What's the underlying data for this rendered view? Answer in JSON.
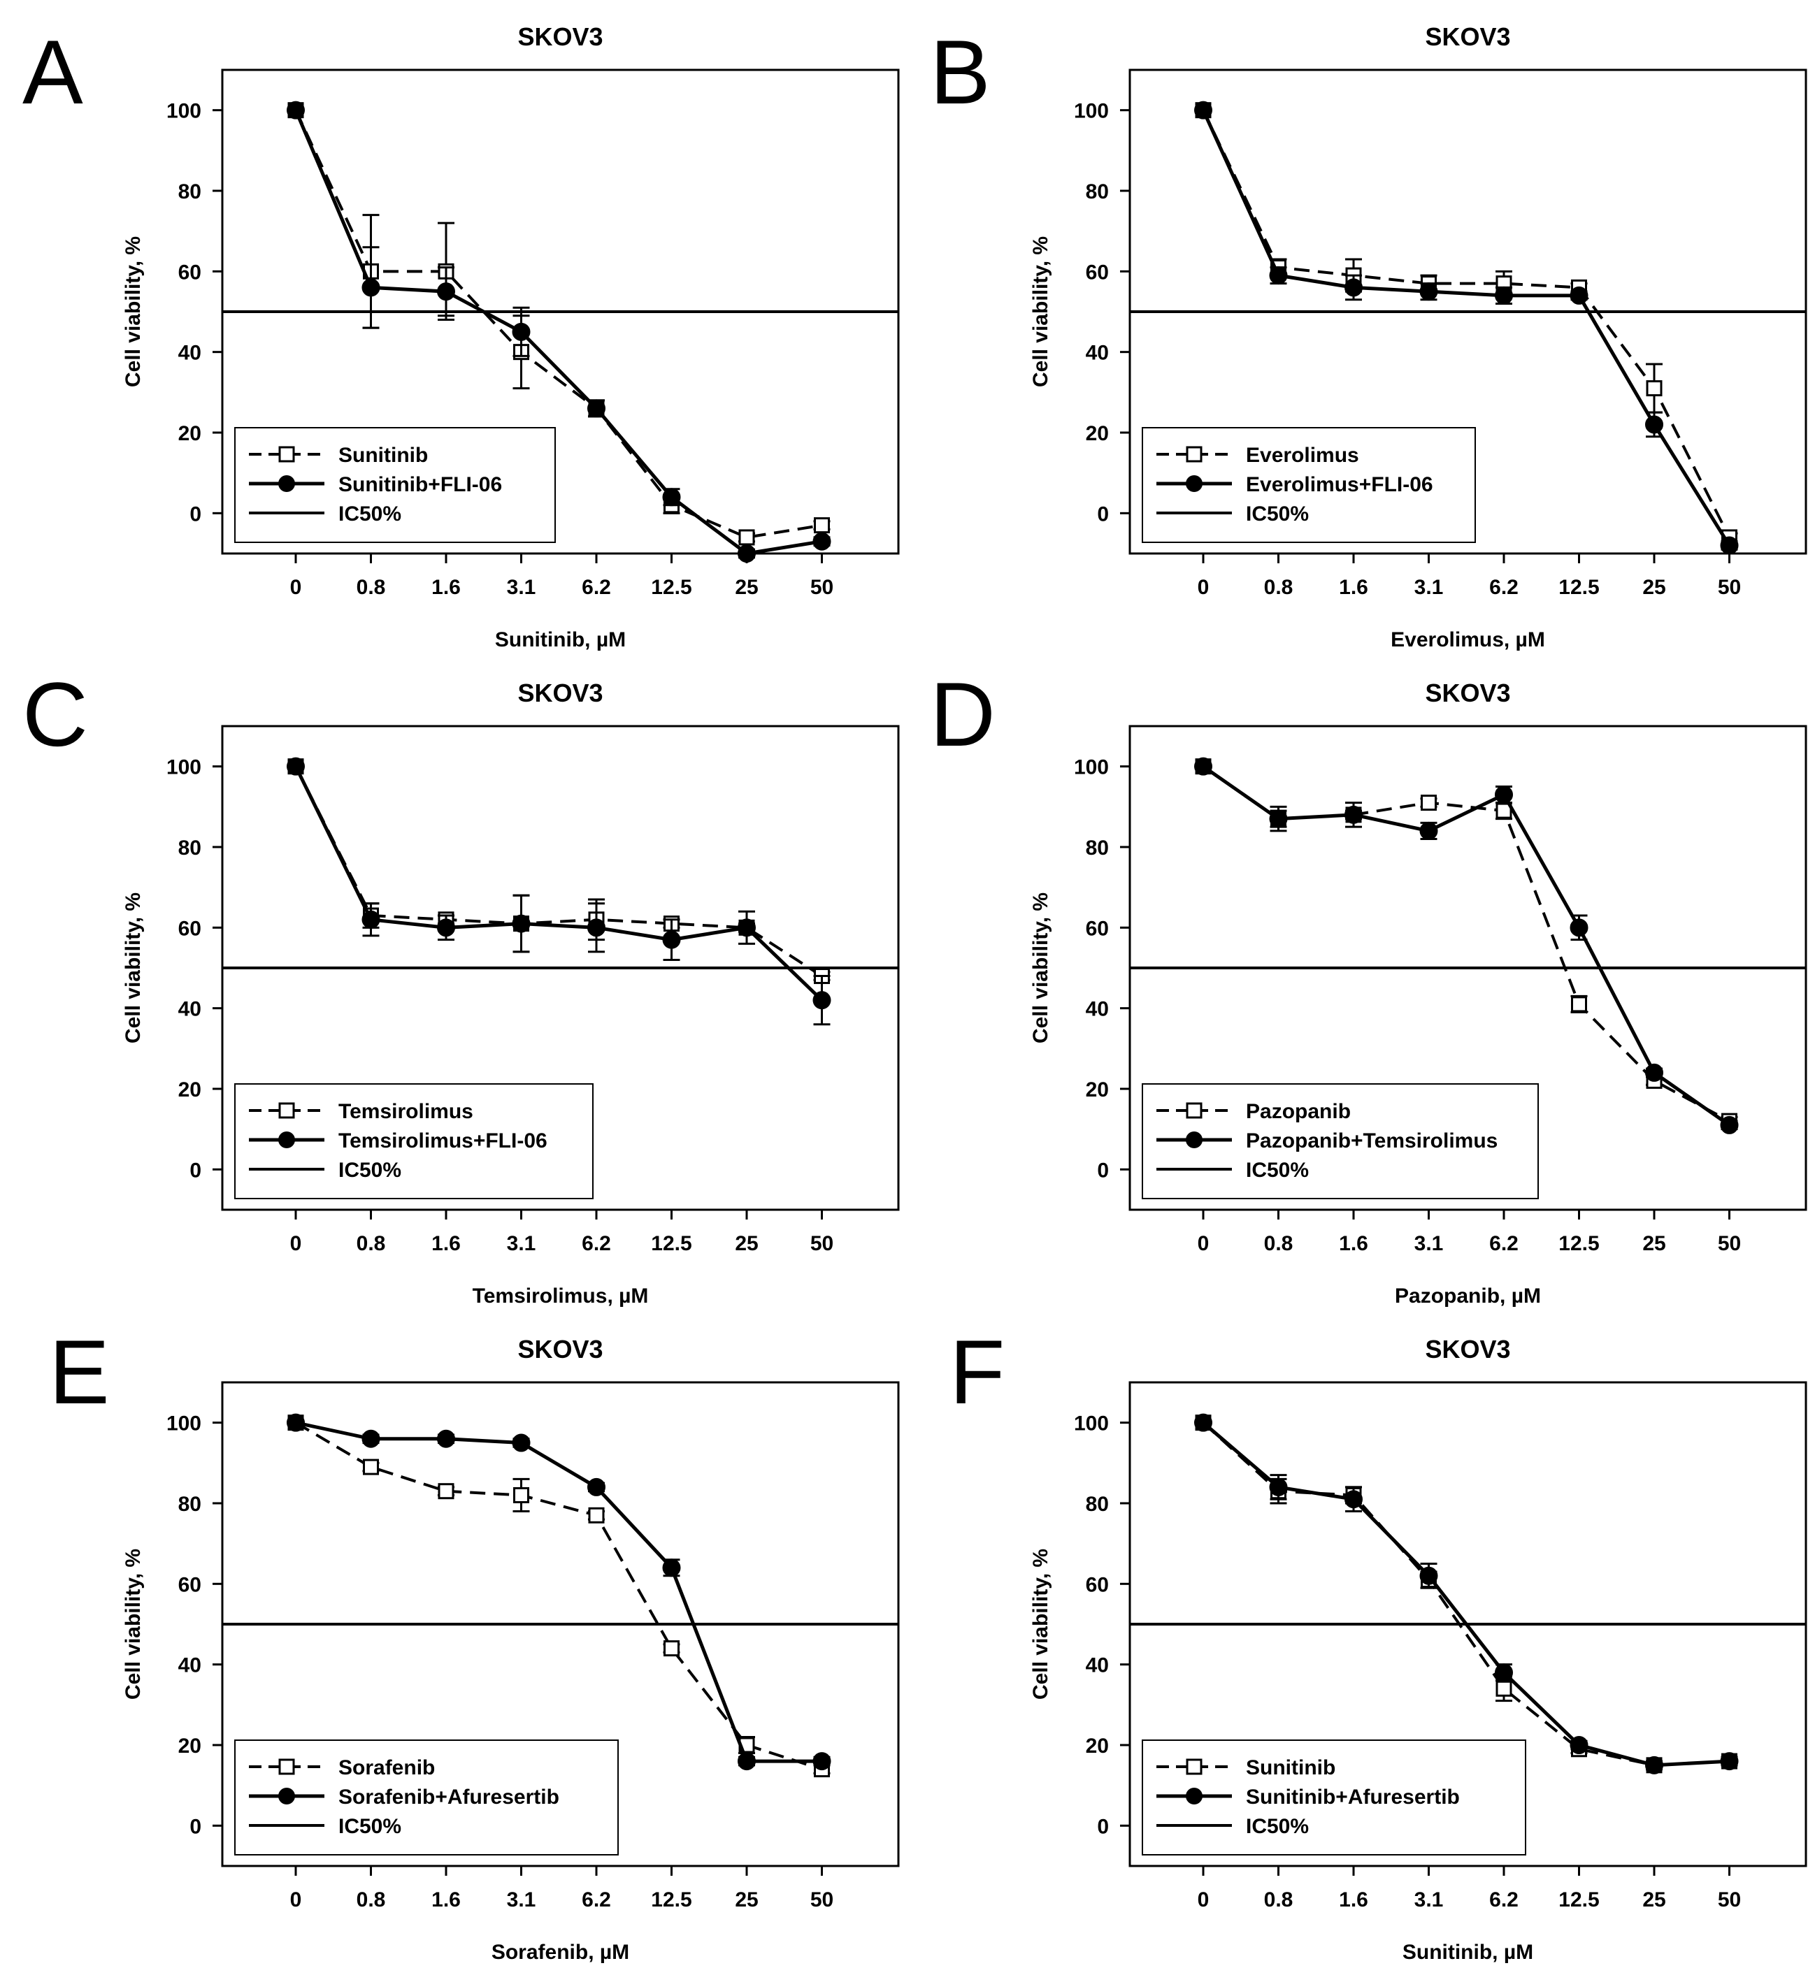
{
  "figure": {
    "panels": [
      {
        "letter": "A"
      },
      {
        "letter": "B"
      },
      {
        "letter": "C"
      },
      {
        "letter": "D"
      },
      {
        "letter": "E"
      },
      {
        "letter": "F"
      }
    ]
  },
  "chart_data": [
    {
      "panel": "A",
      "type": "line",
      "title": "SKOV3",
      "xlabel": "Sunitinib, µM",
      "ylabel": "Cell viability, %",
      "categories": [
        "0",
        "0.8",
        "1.6",
        "3.1",
        "6.2",
        "12.5",
        "25",
        "50"
      ],
      "yticks": [
        0,
        20,
        40,
        60,
        80,
        100
      ],
      "ylim": [
        -10,
        110
      ],
      "reference_line": {
        "label": "IC50%",
        "value": 50
      },
      "legend_position": "bottom-left",
      "series": [
        {
          "name": "Sunitinib",
          "style": "dashed",
          "marker": "open-square",
          "values": [
            100,
            60,
            60,
            40,
            26,
            2,
            -6,
            -3
          ],
          "errors": [
            0,
            14,
            12,
            9,
            2,
            2,
            1,
            1
          ]
        },
        {
          "name": "Sunitinib+FLI-06",
          "style": "solid",
          "marker": "filled-circle",
          "values": [
            100,
            56,
            55,
            45,
            26,
            4,
            -10,
            -7
          ],
          "errors": [
            0,
            10,
            6,
            6,
            2,
            2,
            1,
            1
          ]
        }
      ]
    },
    {
      "panel": "B",
      "type": "line",
      "title": "SKOV3",
      "xlabel": "Everolimus, µM",
      "ylabel": "Cell viability, %",
      "categories": [
        "0",
        "0.8",
        "1.6",
        "3.1",
        "6.2",
        "12.5",
        "25",
        "50"
      ],
      "yticks": [
        0,
        20,
        40,
        60,
        80,
        100
      ],
      "ylim": [
        -10,
        110
      ],
      "reference_line": {
        "label": "IC50%",
        "value": 50
      },
      "legend_position": "bottom-left",
      "series": [
        {
          "name": "Everolimus",
          "style": "dashed",
          "marker": "open-square",
          "values": [
            100,
            61,
            59,
            57,
            57,
            56,
            31,
            -6
          ],
          "errors": [
            0,
            2,
            4,
            2,
            3,
            1,
            6,
            1
          ]
        },
        {
          "name": "Everolimus+FLI-06",
          "style": "solid",
          "marker": "filled-circle",
          "values": [
            100,
            59,
            56,
            55,
            54,
            54,
            22,
            -8
          ],
          "errors": [
            0,
            2,
            3,
            2,
            2,
            1,
            3,
            1
          ]
        }
      ]
    },
    {
      "panel": "C",
      "type": "line",
      "title": "SKOV3",
      "xlabel": "Temsirolimus, µM",
      "ylabel": "Cell viability, %",
      "categories": [
        "0",
        "0.8",
        "1.6",
        "3.1",
        "6.2",
        "12.5",
        "25",
        "50"
      ],
      "yticks": [
        0,
        20,
        40,
        60,
        80,
        100
      ],
      "ylim": [
        -10,
        110
      ],
      "reference_line": {
        "label": "IC50%",
        "value": 50
      },
      "legend_position": "bottom-left",
      "series": [
        {
          "name": "Temsirolimus",
          "style": "dashed",
          "marker": "open-square",
          "values": [
            100,
            63,
            62,
            61,
            62,
            61,
            60,
            48
          ],
          "errors": [
            0,
            3,
            1,
            7,
            5,
            1,
            1,
            1
          ]
        },
        {
          "name": "Temsirolimus+FLI-06",
          "style": "solid",
          "marker": "filled-circle",
          "values": [
            100,
            62,
            60,
            61,
            60,
            57,
            60,
            42
          ],
          "errors": [
            0,
            4,
            3,
            7,
            6,
            5,
            4,
            6
          ]
        }
      ]
    },
    {
      "panel": "D",
      "type": "line",
      "title": "SKOV3",
      "xlabel": "Pazopanib, µM",
      "ylabel": "Cell viability, %",
      "categories": [
        "0",
        "0.8",
        "1.6",
        "3.1",
        "6.2",
        "12.5",
        "25",
        "50"
      ],
      "yticks": [
        0,
        20,
        40,
        60,
        80,
        100
      ],
      "ylim": [
        -10,
        110
      ],
      "reference_line": {
        "label": "IC50%",
        "value": 50
      },
      "legend_position": "bottom-left",
      "series": [
        {
          "name": "Pazopanib",
          "style": "dashed",
          "marker": "open-square",
          "values": [
            100,
            87,
            88,
            91,
            89,
            41,
            22,
            12
          ],
          "errors": [
            0,
            2,
            1,
            1,
            2,
            2,
            1,
            1
          ]
        },
        {
          "name": "Pazopanib+Temsirolimus",
          "style": "solid",
          "marker": "filled-circle",
          "values": [
            100,
            87,
            88,
            84,
            93,
            60,
            24,
            11
          ],
          "errors": [
            0,
            3,
            3,
            2,
            2,
            3,
            1,
            1
          ]
        }
      ]
    },
    {
      "panel": "E",
      "type": "line",
      "title": "SKOV3",
      "xlabel": "Sorafenib, µM",
      "ylabel": "Cell viability, %",
      "categories": [
        "0",
        "0.8",
        "1.6",
        "3.1",
        "6.2",
        "12.5",
        "25",
        "50"
      ],
      "yticks": [
        0,
        20,
        40,
        60,
        80,
        100
      ],
      "ylim": [
        -10,
        110
      ],
      "reference_line": {
        "label": "IC50%",
        "value": 50
      },
      "legend_position": "bottom-left",
      "series": [
        {
          "name": "Sorafenib",
          "style": "dashed",
          "marker": "open-square",
          "values": [
            100,
            89,
            83,
            82,
            77,
            44,
            20,
            14
          ],
          "errors": [
            0,
            1,
            1,
            4,
            1,
            1,
            2,
            1
          ]
        },
        {
          "name": "Sorafenib+Afuresertib",
          "style": "solid",
          "marker": "filled-circle",
          "values": [
            100,
            96,
            96,
            95,
            84,
            64,
            16,
            16
          ],
          "errors": [
            0,
            1,
            1,
            1,
            1,
            2,
            1,
            1
          ]
        }
      ]
    },
    {
      "panel": "F",
      "type": "line",
      "title": "SKOV3",
      "xlabel": "Sunitinib, µM",
      "ylabel": "Cell viability, %",
      "categories": [
        "0",
        "0.8",
        "1.6",
        "3.1",
        "6.2",
        "12.5",
        "25",
        "50"
      ],
      "yticks": [
        0,
        20,
        40,
        60,
        80,
        100
      ],
      "ylim": [
        -10,
        110
      ],
      "reference_line": {
        "label": "IC50%",
        "value": 50
      },
      "legend_position": "bottom-left",
      "series": [
        {
          "name": "Sunitinib",
          "style": "dashed",
          "marker": "open-square",
          "values": [
            100,
            83,
            82,
            61,
            34,
            19,
            15,
            16
          ],
          "errors": [
            0,
            3,
            2,
            2,
            3,
            1,
            1,
            1
          ]
        },
        {
          "name": "Sunitinib+Afuresertib",
          "style": "solid",
          "marker": "filled-circle",
          "values": [
            100,
            84,
            81,
            62,
            38,
            20,
            15,
            16
          ],
          "errors": [
            0,
            3,
            3,
            3,
            2,
            1,
            1,
            1
          ]
        }
      ]
    }
  ]
}
